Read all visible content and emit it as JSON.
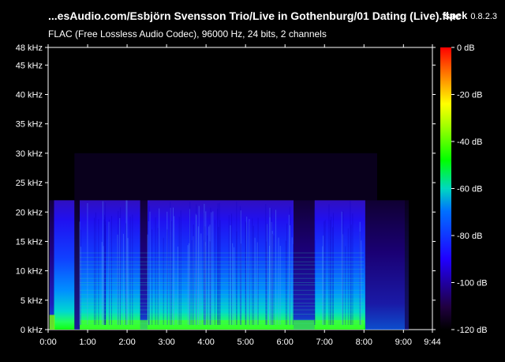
{
  "window": {
    "title": "...esAudio.com/Esbjörn Svensson Trio/Live in Gothenburg/01 Dating (Live).flac",
    "app_name": "spek",
    "app_version": "0.8.2.3",
    "info": "FLAC (Free Lossless Audio Codec), 96000 Hz, 24 bits, 2 channels"
  },
  "colors": {
    "background": "#000000",
    "text": "#ffffff"
  },
  "chart_data": {
    "type": "heatmap",
    "title": "",
    "xlabel": "",
    "ylabel": "",
    "y_ticks": [
      "0 kHz",
      "5 kHz",
      "10 kHz",
      "15 kHz",
      "20 kHz",
      "25 kHz",
      "30 kHz",
      "35 kHz",
      "40 kHz",
      "45 kHz",
      "48 kHz"
    ],
    "y_tick_values": [
      0,
      5,
      10,
      15,
      20,
      25,
      30,
      35,
      40,
      45,
      48
    ],
    "x_ticks": [
      "0:00",
      "1:00",
      "2:00",
      "3:00",
      "4:00",
      "5:00",
      "6:00",
      "7:00",
      "8:00",
      "9:00",
      "9:44"
    ],
    "x_tick_values": [
      0,
      60,
      120,
      180,
      240,
      300,
      360,
      420,
      480,
      540,
      584
    ],
    "xlim": [
      0,
      584
    ],
    "ylim": [
      0,
      48
    ],
    "colorbar": {
      "labels": [
        "0 dB",
        "-20 dB",
        "-40 dB",
        "-60 dB",
        "-80 dB",
        "-100 dB",
        "-120 dB"
      ],
      "values": [
        0,
        -20,
        -40,
        -60,
        -80,
        -100,
        -120
      ],
      "range": [
        -120,
        0
      ]
    },
    "lowpass_cutoff_khz": 22
  }
}
